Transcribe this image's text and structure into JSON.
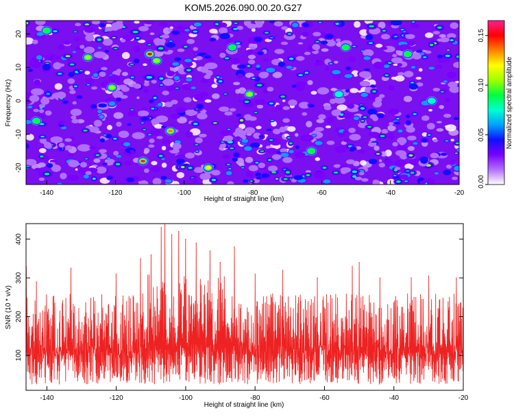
{
  "title": "KOM5.2026.090.00.20.G27",
  "chart_data": [
    {
      "type": "heatmap",
      "id": "spectrogram",
      "xlabel": "Height of straight line (km)",
      "ylabel": "Frequency (Hz)",
      "xlim": [
        -146,
        -20
      ],
      "ylim": [
        -25,
        24
      ],
      "xticks": [
        -140,
        -120,
        -100,
        -80,
        -60,
        -40,
        -20
      ],
      "yticks": [
        -20,
        -10,
        0,
        10,
        20
      ],
      "colorbar": {
        "label": "Normalized spectral amplitude",
        "range": [
          0,
          0.165
        ],
        "ticks": [
          "0.00",
          "0.05",
          "0.10",
          "0.15"
        ],
        "tick_values": [
          0.0,
          0.05,
          0.1,
          0.15
        ],
        "colormap": [
          "#ffffff",
          "#b070ff",
          "#7a00ff",
          "#1010ff",
          "#00a0ff",
          "#00ffd0",
          "#00ff40",
          "#a0ff00",
          "#ffff00",
          "#ff8000",
          "#ff0000",
          "#ff2090"
        ]
      },
      "hotspots": [
        {
          "x": -110,
          "y": 14,
          "amp": 0.15
        },
        {
          "x": -108,
          "y": 12,
          "amp": 0.1
        },
        {
          "x": -112,
          "y": -18,
          "amp": 0.16
        },
        {
          "x": -104,
          "y": -9,
          "amp": 0.14
        },
        {
          "x": -121,
          "y": 4,
          "amp": 0.11
        },
        {
          "x": -81,
          "y": 2,
          "amp": 0.11
        },
        {
          "x": -93,
          "y": -20,
          "amp": 0.12
        },
        {
          "x": -143,
          "y": -6,
          "amp": 0.09
        },
        {
          "x": -128,
          "y": 13,
          "amp": 0.1
        },
        {
          "x": -53,
          "y": 16,
          "amp": 0.09
        },
        {
          "x": -63,
          "y": -15,
          "amp": 0.09
        },
        {
          "x": -55,
          "y": 2,
          "amp": 0.08
        },
        {
          "x": -35,
          "y": 14,
          "amp": 0.09
        },
        {
          "x": -28,
          "y": 0,
          "amp": 0.08
        },
        {
          "x": -140,
          "y": 21,
          "amp": 0.09
        },
        {
          "x": -86,
          "y": 16,
          "amp": 0.09
        }
      ]
    },
    {
      "type": "line",
      "id": "snr",
      "xlabel": "Height of straight line (km)",
      "ylabel": "SNR (10 * v/v)",
      "xlim": [
        -146,
        -20
      ],
      "ylim": [
        10,
        440
      ],
      "xticks": [
        -140,
        -120,
        -100,
        -80,
        -60,
        -40,
        -20
      ],
      "yticks": [
        100,
        200,
        300,
        400
      ],
      "series": [
        {
          "name": "SNR",
          "color": "#ee2222",
          "baseline_mean": 110,
          "noise_low": 25,
          "noise_high": 240,
          "peaks": [
            {
              "x": -146,
              "y": 330
            },
            {
              "x": -143,
              "y": 290
            },
            {
              "x": -133,
              "y": 325
            },
            {
              "x": -120,
              "y": 310
            },
            {
              "x": -113,
              "y": 350
            },
            {
              "x": -110,
              "y": 360
            },
            {
              "x": -107,
              "y": 430
            },
            {
              "x": -106,
              "y": 440
            },
            {
              "x": -104,
              "y": 412
            },
            {
              "x": -102,
              "y": 420
            },
            {
              "x": -100,
              "y": 400
            },
            {
              "x": -97,
              "y": 390
            },
            {
              "x": -93,
              "y": 370
            },
            {
              "x": -90,
              "y": 340
            },
            {
              "x": -86,
              "y": 380
            },
            {
              "x": -80,
              "y": 310
            },
            {
              "x": -72,
              "y": 320
            },
            {
              "x": -62,
              "y": 300
            },
            {
              "x": -52,
              "y": 330
            },
            {
              "x": -50,
              "y": 340
            },
            {
              "x": -44,
              "y": 300
            },
            {
              "x": -35,
              "y": 300
            },
            {
              "x": -30,
              "y": 305
            },
            {
              "x": -22,
              "y": 300
            }
          ]
        }
      ]
    }
  ]
}
